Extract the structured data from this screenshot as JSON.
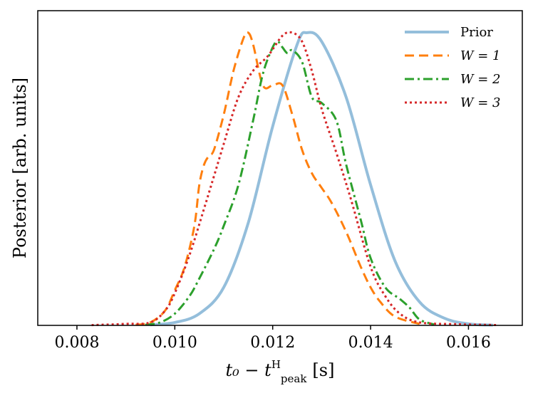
{
  "chart_data": {
    "type": "line",
    "title": "",
    "xlabel": "t₀ − t",
    "xlabel_superscript": "H",
    "xlabel_subscript": "peak",
    "xlabel_units": "[s]",
    "ylabel": "Posterior [arb. units]",
    "xlim": [
      0.0072,
      0.0171
    ],
    "ylim": [
      0,
      1.0
    ],
    "xticks": [
      0.008,
      0.01,
      0.012,
      0.014,
      0.016
    ],
    "xtick_labels": [
      "0.008",
      "0.010",
      "0.012",
      "0.014",
      "0.016"
    ],
    "yticks": [],
    "grid": false,
    "legend_position": "top-right",
    "series": [
      {
        "name": "Prior",
        "color": "#94bedb",
        "style": "solid",
        "x": [
          0.0095,
          0.01,
          0.0105,
          0.011,
          0.0115,
          0.012,
          0.0125,
          0.0127,
          0.013,
          0.0135,
          0.014,
          0.0145,
          0.015,
          0.0155,
          0.016,
          0.0165
        ],
        "y": [
          0.002,
          0.01,
          0.04,
          0.13,
          0.35,
          0.68,
          0.96,
          1.0,
          0.97,
          0.78,
          0.48,
          0.22,
          0.08,
          0.025,
          0.005,
          0.001
        ]
      },
      {
        "name": "W = 1",
        "color": "#ff7f0e",
        "style": "dashed",
        "x": [
          0.0092,
          0.0095,
          0.0098,
          0.01,
          0.0102,
          0.0104,
          0.0105,
          0.0106,
          0.0107,
          0.0108,
          0.011,
          0.0112,
          0.0114,
          0.0115,
          0.0116,
          0.0118,
          0.012,
          0.0122,
          0.0124,
          0.0126,
          0.0128,
          0.013,
          0.0132,
          0.0135,
          0.0138,
          0.014,
          0.0142,
          0.0145,
          0.015
        ],
        "y": [
          0.002,
          0.01,
          0.05,
          0.12,
          0.2,
          0.34,
          0.48,
          0.55,
          0.58,
          0.6,
          0.72,
          0.87,
          0.98,
          1.0,
          0.96,
          0.82,
          0.82,
          0.82,
          0.72,
          0.6,
          0.52,
          0.47,
          0.42,
          0.32,
          0.2,
          0.13,
          0.08,
          0.03,
          0.005
        ]
      },
      {
        "name": "W = 2",
        "color": "#2ca02c",
        "style": "dashdot",
        "x": [
          0.0094,
          0.0097,
          0.01,
          0.0103,
          0.0105,
          0.0108,
          0.011,
          0.0113,
          0.0116,
          0.0118,
          0.012,
          0.0121,
          0.0122,
          0.0123,
          0.0124,
          0.0126,
          0.0128,
          0.013,
          0.0133,
          0.0135,
          0.0138,
          0.014,
          0.0143,
          0.0146,
          0.0148,
          0.015,
          0.0153
        ],
        "y": [
          0.002,
          0.01,
          0.04,
          0.1,
          0.16,
          0.26,
          0.34,
          0.48,
          0.7,
          0.86,
          0.95,
          0.97,
          0.95,
          0.93,
          0.94,
          0.9,
          0.78,
          0.76,
          0.7,
          0.55,
          0.36,
          0.23,
          0.13,
          0.09,
          0.06,
          0.02,
          0.003
        ]
      },
      {
        "name": "W = 3",
        "color": "#d62728",
        "style": "dotted",
        "x": [
          0.0083,
          0.009,
          0.0095,
          0.0098,
          0.01,
          0.0103,
          0.0106,
          0.0108,
          0.011,
          0.0113,
          0.0116,
          0.0119,
          0.0122,
          0.0124,
          0.0126,
          0.0128,
          0.013,
          0.0133,
          0.0136,
          0.014,
          0.0143,
          0.0146,
          0.015,
          0.0158,
          0.0166
        ],
        "y": [
          0.001,
          0.005,
          0.01,
          0.05,
          0.11,
          0.24,
          0.4,
          0.51,
          0.62,
          0.78,
          0.87,
          0.92,
          0.99,
          1.0,
          0.97,
          0.87,
          0.74,
          0.59,
          0.43,
          0.2,
          0.1,
          0.04,
          0.01,
          0.004,
          0.001
        ]
      }
    ]
  }
}
